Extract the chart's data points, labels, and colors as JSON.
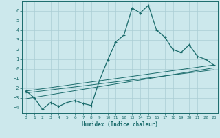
{
  "xlabel": "Humidex (Indice chaleur)",
  "xlim": [
    -0.5,
    23.5
  ],
  "ylim": [
    -4.6,
    7.0
  ],
  "yticks": [
    -4,
    -3,
    -2,
    -1,
    0,
    1,
    2,
    3,
    4,
    5,
    6
  ],
  "xticks": [
    0,
    1,
    2,
    3,
    4,
    5,
    6,
    7,
    8,
    9,
    10,
    11,
    12,
    13,
    14,
    15,
    16,
    17,
    18,
    19,
    20,
    21,
    22,
    23
  ],
  "background_color": "#cce8ec",
  "grid_color": "#aacdd4",
  "line_color": "#1a6b6b",
  "main_curve_x": [
    0,
    1,
    2,
    3,
    4,
    5,
    6,
    7,
    8,
    9,
    10,
    11,
    12,
    13,
    14,
    15,
    16,
    17,
    18,
    19,
    20,
    21,
    22,
    23
  ],
  "main_curve_y": [
    -2.3,
    -3.0,
    -4.2,
    -3.5,
    -3.9,
    -3.5,
    -3.3,
    -3.6,
    -3.8,
    -1.2,
    0.9,
    2.8,
    3.5,
    6.3,
    5.8,
    6.6,
    4.0,
    3.3,
    2.0,
    1.7,
    2.5,
    1.3,
    1.0,
    0.4
  ],
  "line1_x": [
    0,
    23
  ],
  "line1_y": [
    -2.3,
    0.4
  ],
  "line2_x": [
    0,
    23
  ],
  "line2_y": [
    -2.5,
    -0.1
  ],
  "line3_x": [
    0,
    23
  ],
  "line3_y": [
    -3.1,
    0.1
  ]
}
